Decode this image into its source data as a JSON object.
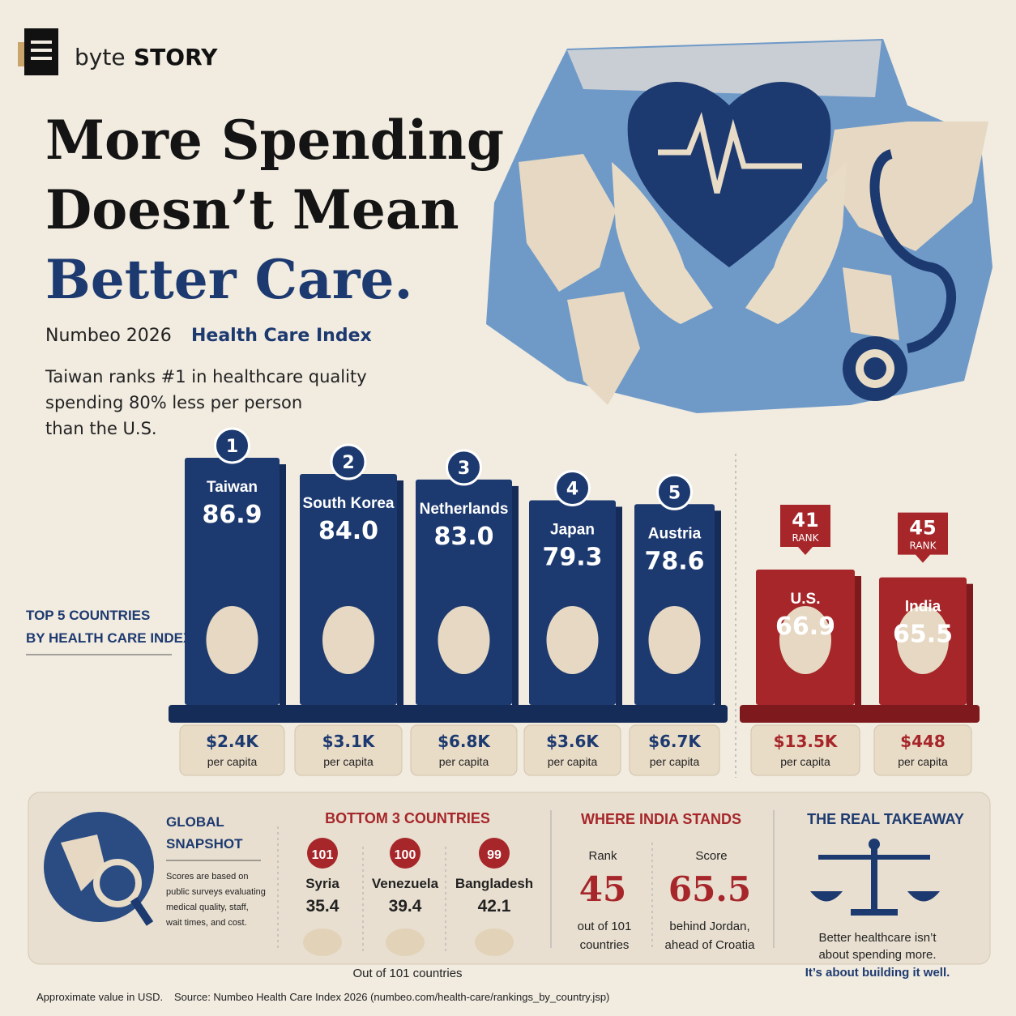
{
  "brand": {
    "light": "byte",
    "bold": "STORY"
  },
  "title": {
    "line1": "More Spending",
    "line2": "Doesn’t Mean",
    "line3": "Better Care."
  },
  "subtitle": {
    "source": "Numbeo 2026",
    "index": "Health Care Index"
  },
  "intro": [
    "Taiwan ranks #1 in healthcare quality",
    "spending 80% less per person",
    "than the U.S."
  ],
  "top_label": [
    "TOP 5 COUNTRIES",
    "BY HEALTH CARE INDEX"
  ],
  "countries": [
    {
      "rank": 1,
      "name": "Taiwan",
      "score": "86.9",
      "spend": "$2.4K",
      "unit": "per capita",
      "group": "top"
    },
    {
      "rank": 2,
      "name": "South Korea",
      "score": "84.0",
      "spend": "$3.1K",
      "unit": "per capita",
      "group": "top"
    },
    {
      "rank": 3,
      "name": "Netherlands",
      "score": "83.0",
      "spend": "$6.8K",
      "unit": "per capita",
      "group": "top"
    },
    {
      "rank": 4,
      "name": "Japan",
      "score": "79.3",
      "spend": "$3.6K",
      "unit": "per capita",
      "group": "top"
    },
    {
      "rank": 5,
      "name": "Austria",
      "score": "78.6",
      "spend": "$6.7K",
      "unit": "per capita",
      "group": "top"
    },
    {
      "rank": 41,
      "rank_label": "RANK",
      "name": "U.S.",
      "score": "66.9",
      "spend": "$13.5K",
      "unit": "per capita",
      "group": "low"
    },
    {
      "rank": 45,
      "rank_label": "RANK",
      "name": "India",
      "score": "65.5",
      "spend": "$448",
      "unit": "per capita",
      "group": "low"
    }
  ],
  "global": {
    "title": [
      "GLOBAL",
      "SNAPSHOT"
    ],
    "note": [
      "Scores are based on",
      "public surveys evaluating",
      "medical quality, staff,",
      "wait times, and cost."
    ]
  },
  "bottom3": {
    "heading": "BOTTOM 3 COUNTRIES",
    "items": [
      {
        "rank": 101,
        "name": "Syria",
        "score": "35.4"
      },
      {
        "rank": 100,
        "name": "Venezuela",
        "score": "39.4"
      },
      {
        "rank": 99,
        "name": "Bangladesh",
        "score": "42.1"
      }
    ],
    "footnote": "Out of 101 countries"
  },
  "india": {
    "heading": "WHERE INDIA STANDS",
    "rank_label": "Rank",
    "rank": "45",
    "rank_note": [
      "out of 101",
      "countries"
    ],
    "score_label": "Score",
    "score": "65.5",
    "score_note": [
      "behind Jordan,",
      "ahead of Croatia"
    ]
  },
  "takeaway": {
    "heading": "THE REAL TAKEAWAY",
    "lines": [
      "Better healthcare isn’t",
      "about spending more."
    ],
    "emphasis": "It’s about building it well."
  },
  "footer": {
    "note": "Approximate value in USD.",
    "source": "Source: Numbeo Health Care Index 2026  (numbeo.com/health-care/rankings_by_country.jsp)"
  }
}
